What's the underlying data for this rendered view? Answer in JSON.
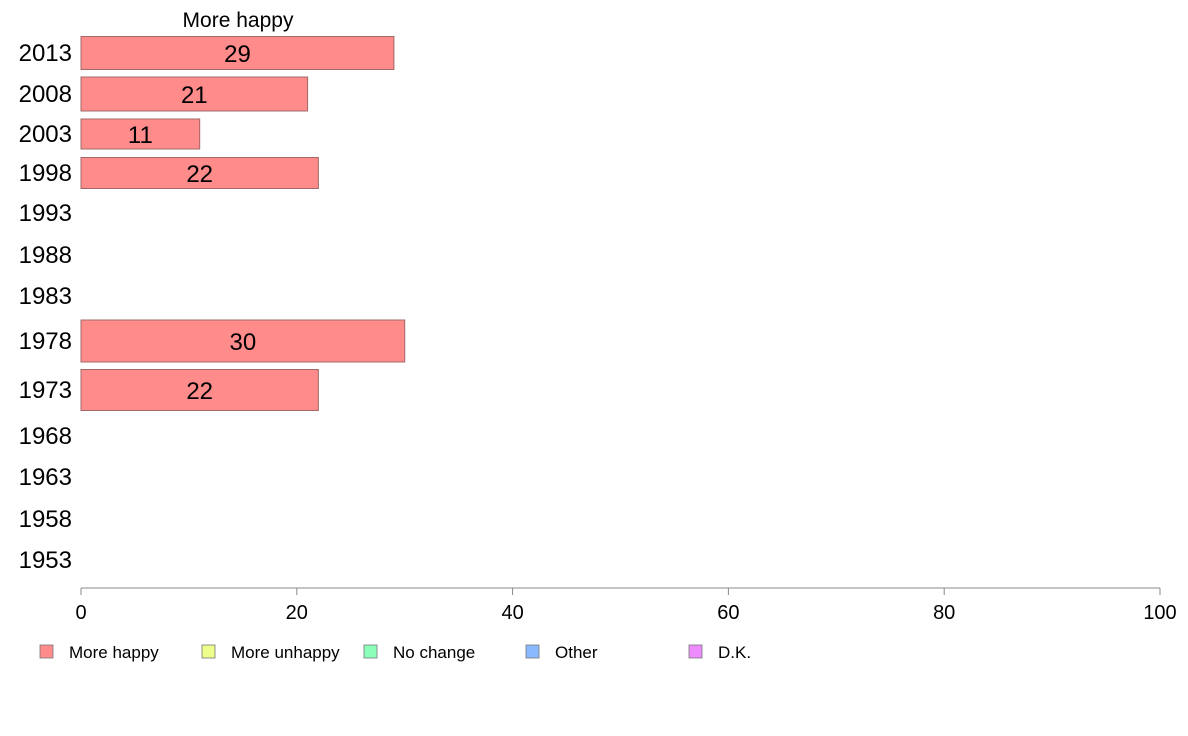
{
  "chart_data": {
    "type": "bar",
    "orientation": "horizontal",
    "title": "More happy",
    "categories": [
      "2013",
      "2008",
      "2003",
      "1998",
      "1993",
      "1988",
      "1983",
      "1978",
      "1973",
      "1968",
      "1963",
      "1958",
      "1953"
    ],
    "series": [
      {
        "name": "More happy",
        "values": [
          29,
          21,
          11,
          22,
          null,
          null,
          null,
          30,
          22,
          null,
          null,
          null,
          null
        ]
      }
    ],
    "value_labels": [
      "29",
      "21",
      "11",
      "22",
      "",
      "",
      "",
      "30",
      "22",
      "",
      "",
      "",
      ""
    ],
    "xlim": [
      0,
      100
    ],
    "xticks": [
      0,
      20,
      40,
      60,
      80,
      100
    ],
    "grid": false,
    "legend": {
      "placement": "bottom",
      "entries": [
        {
          "label": "More happy",
          "color": "#ff8b8b"
        },
        {
          "label": "More unhappy",
          "color": "#eeff8b"
        },
        {
          "label": "No change",
          "color": "#8bffb9"
        },
        {
          "label": "Other",
          "color": "#8bb9ff"
        },
        {
          "label": "D.K.",
          "color": "#ee8bff"
        }
      ]
    },
    "colors": {
      "bar_fill": "#ff8b8b",
      "bar_stroke": "#a06868",
      "axis": "#888888"
    }
  }
}
